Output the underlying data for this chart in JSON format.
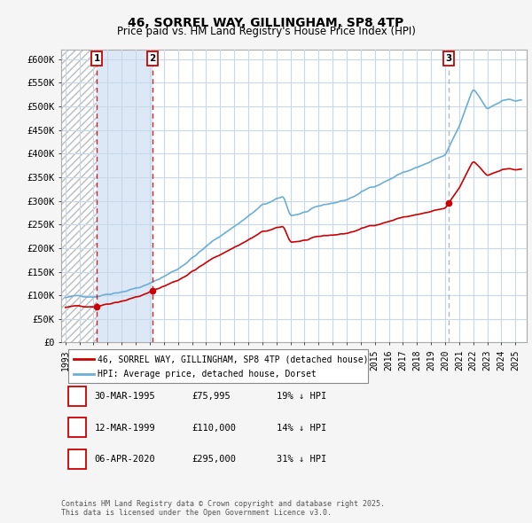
{
  "title": "46, SORREL WAY, GILLINGHAM, SP8 4TP",
  "subtitle": "Price paid vs. HM Land Registry's House Price Index (HPI)",
  "ylim": [
    0,
    620000
  ],
  "yticks": [
    0,
    50000,
    100000,
    150000,
    200000,
    250000,
    300000,
    350000,
    400000,
    450000,
    500000,
    550000,
    600000
  ],
  "ytick_labels": [
    "£0",
    "£50K",
    "£100K",
    "£150K",
    "£200K",
    "£250K",
    "£300K",
    "£350K",
    "£400K",
    "£450K",
    "£500K",
    "£550K",
    "£600K"
  ],
  "hpi_color": "#6baed6",
  "price_color": "#cc0000",
  "bg_hatched": "#d8d8d8",
  "bg_between": "#dce8f5",
  "bg_main": "#ffffff",
  "grid_color": "#c8d8e8",
  "transactions": [
    {
      "date": 1995.23,
      "price": 75995,
      "label": "1",
      "vline_color": "#cc0000"
    },
    {
      "date": 1999.19,
      "price": 110000,
      "label": "2",
      "vline_color": "#cc0000"
    },
    {
      "date": 2020.26,
      "price": 295000,
      "label": "3",
      "vline_color": "#aaaaaa"
    }
  ],
  "legend_line1": "46, SORREL WAY, GILLINGHAM, SP8 4TP (detached house)",
  "legend_line2": "HPI: Average price, detached house, Dorset",
  "table_rows": [
    {
      "num": "1",
      "date": "30-MAR-1995",
      "price": "£75,995",
      "hpi": "19% ↓ HPI"
    },
    {
      "num": "2",
      "date": "12-MAR-1999",
      "price": "£110,000",
      "hpi": "14% ↓ HPI"
    },
    {
      "num": "3",
      "date": "06-APR-2020",
      "price": "£295,000",
      "hpi": "31% ↓ HPI"
    }
  ],
  "footnote": "Contains HM Land Registry data © Crown copyright and database right 2025.\nThis data is licensed under the Open Government Licence v3.0.",
  "xmin": 1992.7,
  "xmax": 2025.8
}
